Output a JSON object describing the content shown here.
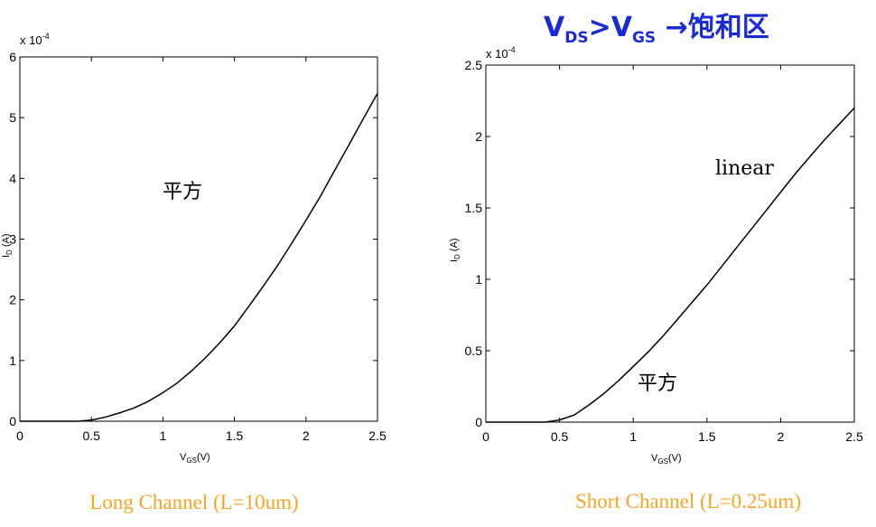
{
  "title": {
    "v1": "V",
    "sub1": "DS",
    "gt": ">",
    "v2": "V",
    "sub2": "GS",
    "rest": " →饱和区",
    "color": "#1a2bd6"
  },
  "charts": [
    {
      "caption": "Long Channel (L=10um)",
      "exponent": "x 10",
      "exponent_power": "-4",
      "annotations": [
        "平方"
      ]
    },
    {
      "caption": "Short Channel (L=0.25um)",
      "exponent": "x 10",
      "exponent_power": "-4",
      "annotations": [
        "linear",
        "平方"
      ]
    }
  ],
  "caption_color": "#f5a623",
  "chart_data": [
    {
      "type": "line",
      "xlabel": "V(V)",
      "xlabel_sub": "GS",
      "ylabel": "I(A)",
      "ylabel_sub": "D",
      "xlim": [
        0,
        2.5
      ],
      "ylim": [
        0,
        6
      ],
      "xticks": [
        "0",
        "0.5",
        "1",
        "1.5",
        "2",
        "2.5"
      ],
      "yticks": [
        "0",
        "1",
        "2",
        "3",
        "4",
        "5",
        "6"
      ],
      "y_scale_note": "x 10^-4",
      "series": [
        {
          "x": [
            0,
            0.4,
            0.5,
            0.6,
            0.7,
            0.8,
            0.9,
            1.0,
            1.1,
            1.2,
            1.3,
            1.4,
            1.5,
            1.6,
            1.7,
            1.8,
            1.9,
            2.0,
            2.1,
            2.2,
            2.3,
            2.4,
            2.5
          ],
          "values": [
            0,
            0,
            0.02,
            0.07,
            0.14,
            0.22,
            0.33,
            0.47,
            0.63,
            0.83,
            1.05,
            1.3,
            1.57,
            1.89,
            2.22,
            2.56,
            2.93,
            3.31,
            3.7,
            4.13,
            4.55,
            4.98,
            5.4
          ]
        }
      ]
    },
    {
      "type": "line",
      "xlabel": "V(V)",
      "xlabel_sub": "GS",
      "ylabel": "I(A)",
      "ylabel_sub": "D",
      "xlim": [
        0,
        2.5
      ],
      "ylim": [
        0,
        2.5
      ],
      "xticks": [
        "0",
        "0.5",
        "1",
        "1.5",
        "2",
        "2.5"
      ],
      "yticks": [
        "0",
        "0.5",
        "1",
        "1.5",
        "2",
        "2.5"
      ],
      "y_scale_note": "x 10^-4",
      "series": [
        {
          "x": [
            0,
            0.4,
            0.5,
            0.6,
            0.7,
            0.8,
            0.9,
            1.0,
            1.1,
            1.2,
            1.3,
            1.4,
            1.5,
            1.6,
            1.7,
            1.8,
            1.9,
            2.0,
            2.1,
            2.2,
            2.3,
            2.4,
            2.5
          ],
          "values": [
            0,
            0,
            0.015,
            0.05,
            0.12,
            0.2,
            0.29,
            0.39,
            0.49,
            0.6,
            0.72,
            0.84,
            0.96,
            1.09,
            1.22,
            1.35,
            1.48,
            1.61,
            1.74,
            1.86,
            1.98,
            2.09,
            2.2
          ]
        }
      ]
    }
  ]
}
